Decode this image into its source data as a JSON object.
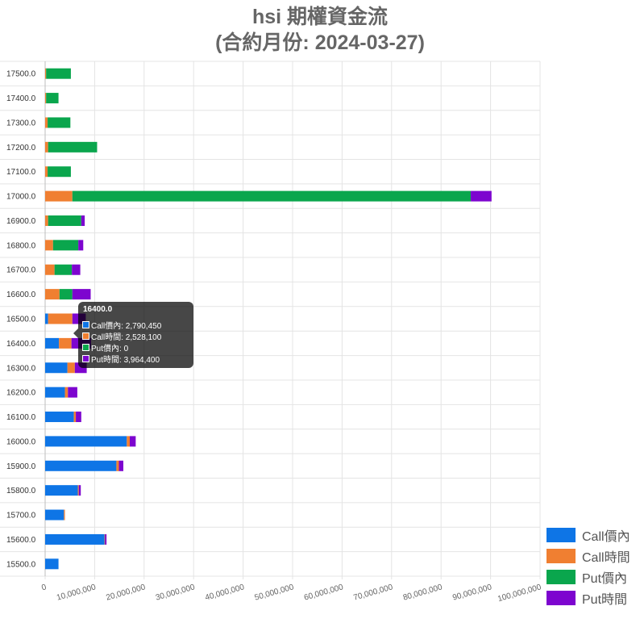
{
  "chart_data": {
    "type": "bar",
    "orientation": "horizontal",
    "stacked": true,
    "title_lines": [
      "hsi 期權資金流",
      "(合約月份: 2024-03-27)"
    ],
    "categories": [
      "17500.0",
      "17400.0",
      "17300.0",
      "17200.0",
      "17100.0",
      "17000.0",
      "16900.0",
      "16800.0",
      "16700.0",
      "16600.0",
      "16500.0",
      "16400.0",
      "16300.0",
      "16200.0",
      "16100.0",
      "16000.0",
      "15900.0",
      "15800.0",
      "15700.0",
      "15600.0",
      "15500.0"
    ],
    "series": [
      {
        "name": "Call價內",
        "color": "#0e75e6",
        "values": [
          0,
          0,
          0,
          0,
          0,
          0,
          0,
          0,
          0,
          0,
          600000,
          2790450,
          4500000,
          4000000,
          5800000,
          16500000,
          14400000,
          6600000,
          3800000,
          12000000,
          2700000
        ]
      },
      {
        "name": "Call時間",
        "color": "#f07f31",
        "values": [
          200000,
          200000,
          500000,
          600000,
          500000,
          5500000,
          600000,
          1600000,
          1900000,
          2900000,
          4900000,
          2528100,
          1500000,
          600000,
          400000,
          600000,
          500000,
          200000,
          200000,
          100000,
          0
        ]
      },
      {
        "name": "Put價內",
        "color": "#0aa64d",
        "values": [
          5000000,
          2500000,
          4600000,
          9900000,
          4700000,
          80500000,
          6700000,
          5100000,
          3500000,
          2600000,
          0,
          0,
          0,
          0,
          0,
          0,
          0,
          0,
          0,
          0,
          0
        ]
      },
      {
        "name": "Put時間",
        "color": "#7d05cf",
        "values": [
          0,
          0,
          0,
          0,
          0,
          4200000,
          700000,
          1000000,
          1700000,
          3700000,
          2700000,
          3964400,
          2400000,
          1900000,
          1100000,
          1200000,
          900000,
          400000,
          0,
          300000,
          0
        ]
      }
    ],
    "xlim": [
      0,
      100000000
    ],
    "x_ticks": [
      "0",
      "10,000,000",
      "20,000,000",
      "30,000,000",
      "40,000,000",
      "50,000,000",
      "60,000,000",
      "70,000,000",
      "80,000,000",
      "90,000,000",
      "100,000,000"
    ],
    "grid": true,
    "legend_position": "bottom-right",
    "tooltip": {
      "title": "16400.0",
      "rows": [
        {
          "color": "#0e75e6",
          "text": "Call價內: 2,790,450"
        },
        {
          "color": "#f07f31",
          "text": "Call時間: 2,528,100"
        },
        {
          "color": "#0aa64d",
          "text": "Put價內: 0"
        },
        {
          "color": "#7d05cf",
          "text": "Put時間: 3,964,400"
        }
      ]
    }
  }
}
